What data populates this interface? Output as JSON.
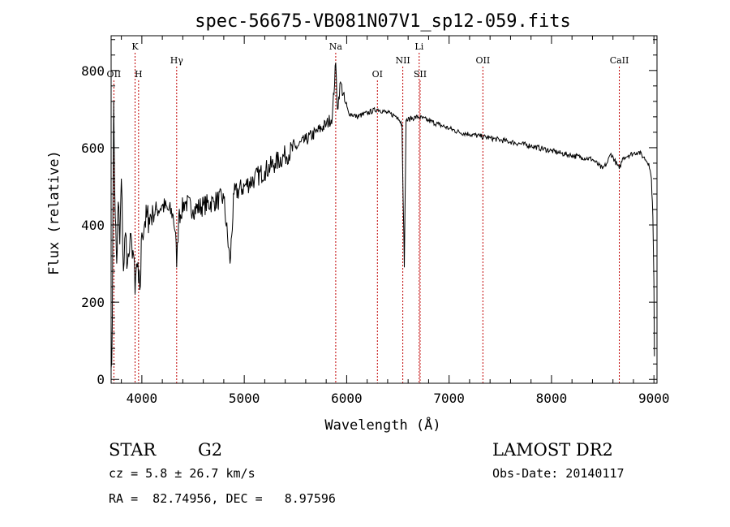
{
  "chart_data": {
    "type": "line",
    "title": "spec-56675-VB081N07V1_sp12-059.fits",
    "xlabel": "Wavelength (Å)",
    "ylabel": "Flux (relative)",
    "xlim": [
      3700,
      9030
    ],
    "ylim": [
      -10,
      890
    ],
    "x_ticks": [
      4000,
      5000,
      6000,
      7000,
      8000,
      9000
    ],
    "y_ticks": [
      0,
      200,
      400,
      600,
      800
    ],
    "grid": false,
    "series": [
      {
        "name": "flux",
        "x": [
          3700,
          3712,
          3725,
          3740,
          3755,
          3770,
          3785,
          3800,
          3820,
          3840,
          3860,
          3880,
          3900,
          3920,
          3934,
          3950,
          3968,
          3985,
          4000,
          4030,
          4070,
          4110,
          4150,
          4200,
          4250,
          4300,
          4330,
          4340,
          4360,
          4420,
          4500,
          4600,
          4700,
          4800,
          4861,
          4900,
          5000,
          5100,
          5200,
          5300,
          5400,
          5500,
          5600,
          5700,
          5800,
          5860,
          5893,
          5910,
          5940,
          5980,
          6020,
          6100,
          6200,
          6300,
          6400,
          6500,
          6540,
          6563,
          6580,
          6620,
          6700,
          6800,
          6900,
          7000,
          7100,
          7200,
          7300,
          7400,
          7500,
          7600,
          7700,
          7800,
          7900,
          8000,
          8100,
          8200,
          8300,
          8400,
          8498,
          8542,
          8580,
          8662,
          8700,
          8750,
          8800,
          8850,
          8900,
          8950,
          8975,
          8990,
          9000,
          9005
        ],
        "y": [
          30,
          150,
          720,
          420,
          300,
          460,
          350,
          520,
          280,
          380,
          300,
          330,
          360,
          320,
          220,
          300,
          250,
          240,
          380,
          410,
          420,
          430,
          440,
          450,
          440,
          430,
          380,
          290,
          420,
          460,
          440,
          450,
          460,
          470,
          300,
          480,
          500,
          520,
          540,
          560,
          580,
          600,
          620,
          640,
          660,
          680,
          820,
          700,
          770,
          720,
          690,
          680,
          690,
          700,
          690,
          680,
          660,
          290,
          670,
          675,
          680,
          670,
          660,
          650,
          640,
          635,
          630,
          625,
          620,
          615,
          610,
          605,
          598,
          592,
          585,
          580,
          575,
          570,
          545,
          560,
          585,
          545,
          575,
          580,
          585,
          590,
          575,
          560,
          520,
          420,
          250,
          60
        ]
      }
    ],
    "lines": [
      {
        "label": "OII",
        "x": 3727,
        "row": 2
      },
      {
        "label": "K",
        "x": 3934,
        "row": 1
      },
      {
        "label": "H",
        "x": 3968,
        "row": 2
      },
      {
        "label": "Hγ",
        "x": 4340,
        "row": 3
      },
      {
        "label": "Na",
        "x": 5893,
        "row": 1
      },
      {
        "label": "OI",
        "x": 6300,
        "row": 2
      },
      {
        "label": "NII",
        "x": 6548,
        "row": 3
      },
      {
        "label": "Li",
        "x": 6708,
        "row": 1
      },
      {
        "label": "SII",
        "x": 6717,
        "row": 2
      },
      {
        "label": "OII",
        "x": 7330,
        "row": 3
      },
      {
        "label": "CaII",
        "x": 8662,
        "row": 3
      }
    ]
  },
  "info": {
    "object_class": "STAR",
    "subclass": "G2",
    "survey": "LAMOST DR2",
    "cz": "cz = 5.8 ± 26.7 km/s",
    "obs_date": "Obs-Date: 20140117",
    "coords": "RA =  82.74956, DEC =   8.97596"
  },
  "colors": {
    "spectrum": "#000000",
    "line_marker": "#c00000",
    "axes": "#000000",
    "background": "#ffffff"
  }
}
